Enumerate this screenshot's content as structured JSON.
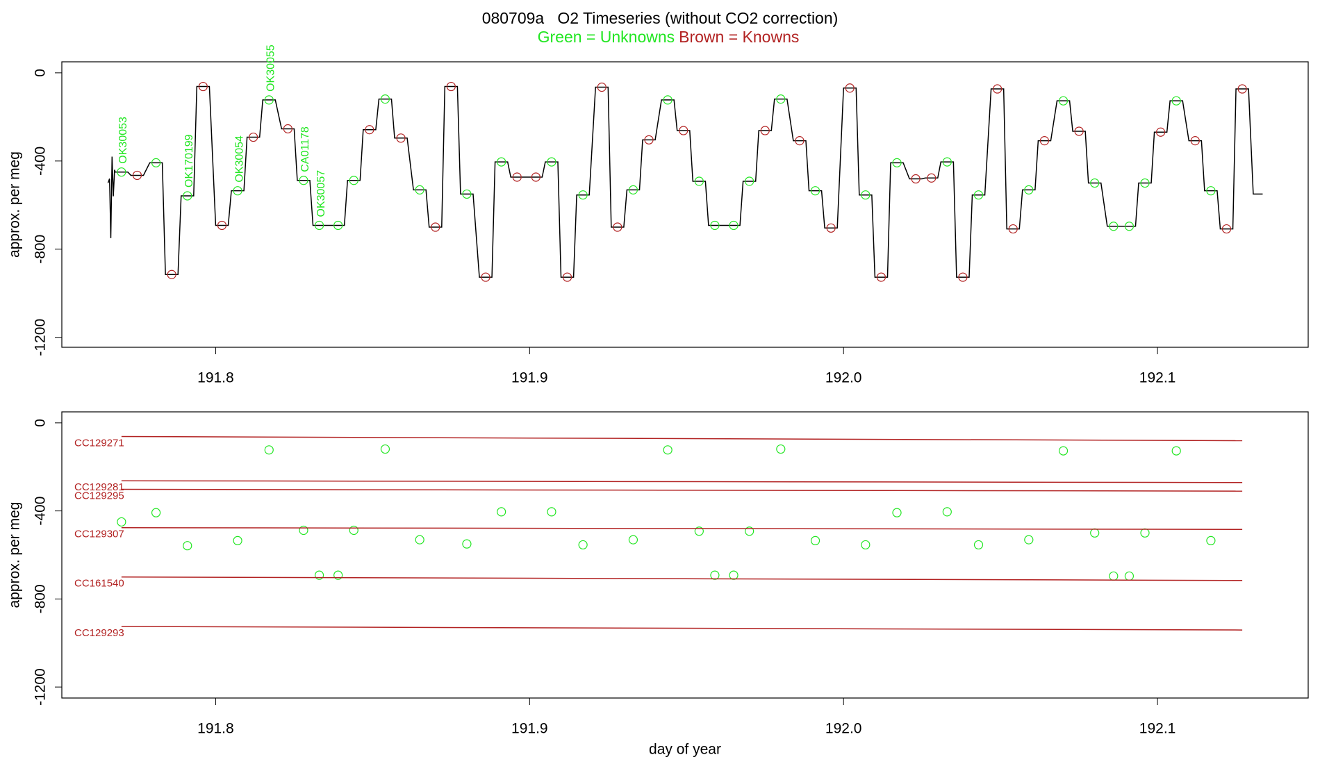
{
  "chart_data": [
    {
      "type": "line",
      "title": "080709a   O2 Timeseries (without CO2 correction)",
      "ylabel": "approx. per meg",
      "xlim": [
        191.751,
        192.148
      ],
      "ylim": [
        -1245,
        50
      ],
      "xticks": [
        191.8,
        191.9,
        {
          "value": 192,
          "label": "192.0"
        },
        192.1
      ],
      "yticks": [
        0,
        -400,
        -800,
        -1200
      ],
      "legend": "top",
      "series": [
        {
          "mode": "line",
          "color": "#000000",
          "x": [
            191.7657,
            191.7662,
            191.7666,
            191.767,
            191.7674,
            191.7678,
            191.768,
            191.772,
            191.773,
            191.777,
            191.779,
            191.783,
            191.784,
            191.788,
            191.789,
            191.793,
            191.794,
            191.798,
            191.8,
            191.804,
            191.805,
            191.809,
            191.81,
            191.814,
            191.815,
            191.819,
            191.821,
            191.825,
            191.826,
            191.83,
            191.831,
            191.835,
            191.837,
            191.841,
            191.842,
            191.846,
            191.847,
            191.851,
            191.852,
            191.856,
            191.857,
            191.861,
            191.863,
            191.867,
            191.868,
            191.872,
            191.873,
            191.877,
            191.878,
            191.882,
            191.884,
            191.888,
            191.889,
            191.893,
            191.894,
            191.898,
            191.9,
            191.904,
            191.905,
            191.909,
            191.91,
            191.914,
            191.915,
            191.919,
            191.921,
            191.925,
            191.926,
            191.93,
            191.931,
            191.935,
            191.936,
            191.94,
            191.942,
            191.946,
            191.947,
            191.951,
            191.952,
            191.956,
            191.957,
            191.961,
            191.963,
            191.967,
            191.968,
            191.972,
            191.973,
            191.977,
            191.978,
            191.982,
            191.984,
            191.988,
            191.989,
            191.993,
            191.994,
            191.998,
            192.0,
            192.004,
            192.005,
            192.009,
            192.01,
            192.014,
            192.015,
            192.019,
            192.021,
            192.025,
            192.026,
            192.03,
            192.031,
            192.035,
            192.036,
            192.04,
            192.041,
            192.045,
            192.047,
            192.051,
            192.052,
            192.056,
            192.057,
            192.061,
            192.062,
            192.066,
            192.068,
            192.072,
            192.073,
            192.077,
            192.078,
            192.082,
            192.084,
            192.088,
            192.089,
            192.093,
            192.094,
            192.098,
            192.099,
            192.103,
            192.104,
            192.108,
            192.11,
            192.114,
            192.115,
            192.119,
            192.12,
            192.124,
            192.125,
            192.129,
            192.1305,
            192.1335
          ],
          "values": [
            -500,
            -480,
            -750,
            -380,
            -560,
            -440,
            -450,
            -450,
            -465,
            -465,
            -408,
            -408,
            -915,
            -915,
            -558,
            -558,
            -62,
            -62,
            -692,
            -692,
            -535,
            -535,
            -292,
            -292,
            -123,
            -123,
            -254,
            -254,
            -488,
            -488,
            -692,
            -692,
            -692,
            -692,
            -488,
            -488,
            -258,
            -258,
            -119,
            -119,
            -296,
            -296,
            -531,
            -531,
            -700,
            -700,
            -62,
            -62,
            -550,
            -550,
            -927,
            -927,
            -404,
            -404,
            -473,
            -473,
            -473,
            -473,
            -404,
            -404,
            -927,
            -927,
            -554,
            -554,
            -65,
            -65,
            -700,
            -700,
            -531,
            -531,
            -304,
            -304,
            -123,
            -123,
            -262,
            -262,
            -492,
            -492,
            -692,
            -692,
            -692,
            -692,
            -492,
            -492,
            -262,
            -262,
            -119,
            -119,
            -308,
            -308,
            -535,
            -535,
            -704,
            -704,
            -69,
            -69,
            -554,
            -554,
            -927,
            -927,
            -408,
            -408,
            -481,
            -481,
            -477,
            -477,
            -404,
            -404,
            -927,
            -927,
            -554,
            -554,
            -73,
            -73,
            -708,
            -708,
            -531,
            -531,
            -308,
            -308,
            -127,
            -127,
            -265,
            -265,
            -500,
            -500,
            -696,
            -696,
            -696,
            -696,
            -500,
            -500,
            -269,
            -269,
            -127,
            -127,
            -308,
            -308,
            -535,
            -535,
            -708,
            -708,
            -73,
            -73,
            -550,
            -550
          ]
        },
        {
          "mode": "markers",
          "name": "Green = Unknowns",
          "color": "#22e622",
          "x": [
            191.77,
            191.781,
            191.791,
            191.807,
            191.817,
            191.828,
            191.833,
            191.839,
            191.844,
            191.854,
            191.865,
            191.88,
            191.891,
            191.907,
            191.917,
            191.933,
            191.944,
            191.954,
            191.959,
            191.965,
            191.97,
            191.98,
            191.991,
            192.007,
            192.017,
            192.033,
            192.043,
            192.059,
            192.07,
            192.08,
            192.086,
            192.091,
            192.096,
            192.106,
            192.117
          ],
          "values": [
            -450,
            -408,
            -558,
            -535,
            -123,
            -488,
            -692,
            -692,
            -488,
            -119,
            -531,
            -550,
            -404,
            -404,
            -554,
            -531,
            -123,
            -492,
            -692,
            -692,
            -492,
            -119,
            -535,
            -554,
            -408,
            -404,
            -554,
            -531,
            -127,
            -500,
            -696,
            -696,
            -500,
            -127,
            -535
          ],
          "point_labels": [
            "OK30053",
            null,
            "OK170199",
            "OK30054",
            "OK30055",
            "CA01178",
            "OK30057",
            null,
            null,
            null,
            null,
            null,
            null,
            null,
            null,
            null,
            null,
            null,
            null,
            null,
            null,
            null,
            null,
            null,
            null,
            null,
            null,
            null,
            null,
            null,
            null,
            null,
            null,
            null,
            null
          ]
        },
        {
          "mode": "markers",
          "name": "Brown = Knowns",
          "color": "#b22222",
          "x": [
            191.775,
            191.786,
            191.796,
            191.802,
            191.812,
            191.823,
            191.849,
            191.859,
            191.87,
            191.875,
            191.886,
            191.896,
            191.902,
            191.912,
            191.923,
            191.928,
            191.938,
            191.949,
            191.975,
            191.986,
            191.996,
            192.002,
            192.012,
            192.023,
            192.028,
            192.038,
            192.049,
            192.054,
            192.064,
            192.075,
            192.101,
            192.112,
            192.122,
            192.127
          ],
          "values": [
            -465,
            -915,
            -62,
            -692,
            -292,
            -254,
            -258,
            -296,
            -700,
            -62,
            -927,
            -473,
            -473,
            -927,
            -65,
            -700,
            -304,
            -262,
            -262,
            -308,
            -704,
            -69,
            -927,
            -481,
            -477,
            -927,
            -73,
            -708,
            -308,
            -265,
            -269,
            -308,
            -708,
            -73
          ]
        }
      ]
    },
    {
      "type": "scatter",
      "ylabel": "approx. per meg",
      "xlabel": "day of year",
      "xlim": [
        191.751,
        192.148
      ],
      "ylim": [
        -1250,
        50
      ],
      "xticks": [
        191.8,
        191.9,
        {
          "value": 192,
          "label": "192.0"
        },
        192.1
      ],
      "yticks": [
        0,
        -400,
        -800,
        -1200
      ],
      "legend": "line-start",
      "series": [
        {
          "mode": "markers",
          "color": "#22e622",
          "x": [
            191.77,
            191.781,
            191.791,
            191.807,
            191.817,
            191.828,
            191.833,
            191.839,
            191.844,
            191.854,
            191.865,
            191.88,
            191.891,
            191.907,
            191.917,
            191.933,
            191.944,
            191.954,
            191.959,
            191.965,
            191.97,
            191.98,
            191.991,
            192.007,
            192.017,
            192.033,
            192.043,
            192.059,
            192.07,
            192.08,
            192.086,
            192.091,
            192.096,
            192.106,
            192.117
          ],
          "values": [
            -450,
            -408,
            -558,
            -535,
            -123,
            -488,
            -692,
            -692,
            -488,
            -119,
            -531,
            -550,
            -404,
            -404,
            -554,
            -531,
            -123,
            -492,
            -692,
            -692,
            -492,
            -119,
            -535,
            -554,
            -408,
            -404,
            -554,
            -531,
            -127,
            -500,
            -696,
            -696,
            -500,
            -127,
            -535
          ]
        },
        {
          "mode": "line",
          "name": "CC129271",
          "color": "#b22222",
          "x": [
            191.77,
            192.127
          ],
          "values": [
            -62,
            -81
          ]
        },
        {
          "mode": "line",
          "name": "CC129281",
          "color": "#b22222",
          "x": [
            191.77,
            192.127
          ],
          "values": [
            -263,
            -271
          ]
        },
        {
          "mode": "line",
          "name": "CC129295",
          "color": "#b22222",
          "x": [
            191.77,
            192.127
          ],
          "values": [
            -302,
            -310
          ]
        },
        {
          "mode": "line",
          "name": "CC129307",
          "color": "#b22222",
          "x": [
            191.77,
            192.127
          ],
          "values": [
            -476,
            -484
          ]
        },
        {
          "mode": "line",
          "name": "CC161540",
          "color": "#b22222",
          "x": [
            191.77,
            192.127
          ],
          "values": [
            -700,
            -716
          ]
        },
        {
          "mode": "line",
          "name": "CC129293",
          "color": "#b22222",
          "x": [
            191.77,
            192.127
          ],
          "values": [
            -925,
            -941
          ]
        }
      ]
    }
  ]
}
